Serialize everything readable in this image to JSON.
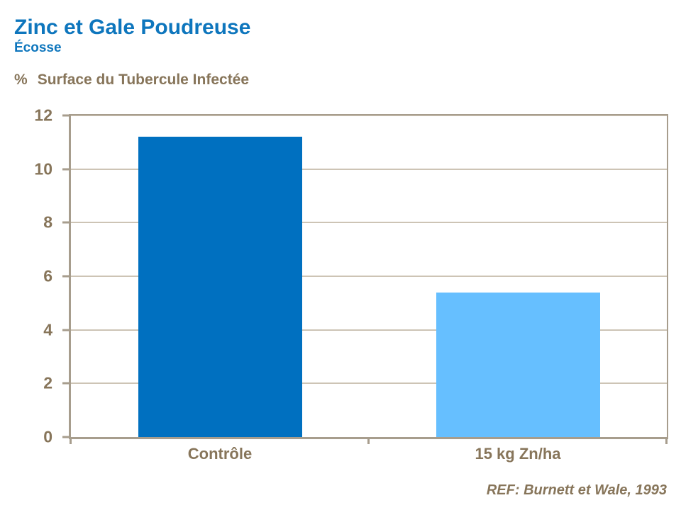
{
  "header": {
    "title": "Zinc et Gale Poudreuse",
    "subtitle": "Écosse",
    "y_axis_prefix": "%",
    "y_axis_label": "Surface du Tubercule Infectée"
  },
  "footer": {
    "reference": "REF: Burnett et Wale, 1993"
  },
  "colors": {
    "title_blue": "#0e76bd",
    "text_brown": "#87755a",
    "axis_line": "#a79d8d",
    "gridline": "#cdc4b5"
  },
  "chart_data": {
    "type": "bar",
    "categories": [
      "Contrôle",
      "15 kg Zn/ha"
    ],
    "values": [
      11.2,
      5.4
    ],
    "series_colors": [
      "#0070c0",
      "#66bfff"
    ],
    "title": "Zinc et Gale Poudreuse",
    "subtitle": "Écosse",
    "xlabel": "",
    "ylabel": "% Surface du Tubercule Infectée",
    "ylim": [
      0,
      12
    ],
    "yticks": [
      0,
      2,
      4,
      6,
      8,
      10,
      12
    ],
    "grid": true,
    "legend": false,
    "annotation": "REF: Burnett et Wale, 1993"
  }
}
